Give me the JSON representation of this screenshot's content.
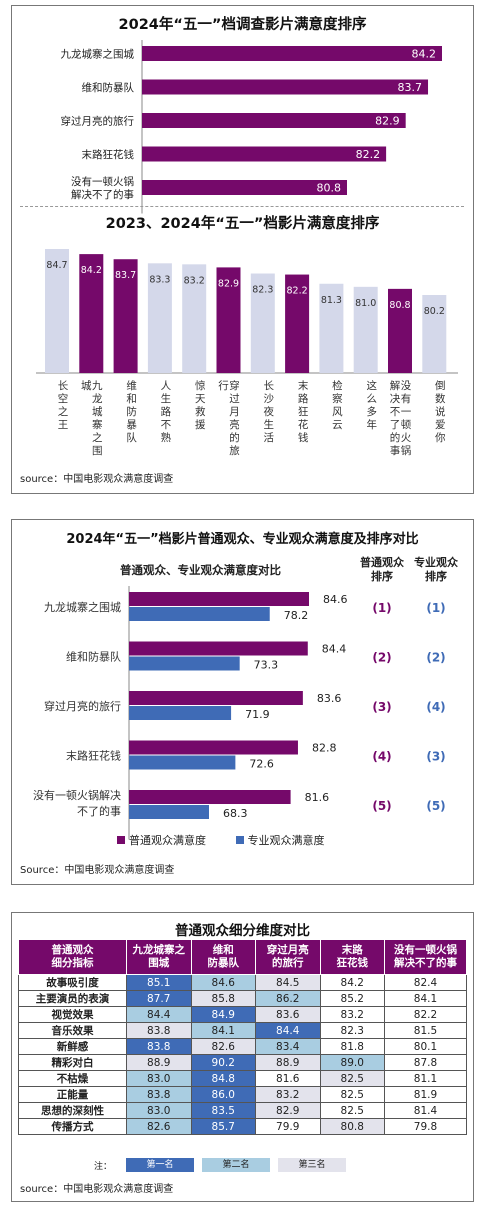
{
  "panel1": {
    "title": "2024年“五一”档调查影片满意度排序",
    "bar_color": "#75096a",
    "chart_data": {
      "type": "bar",
      "orientation": "horizontal",
      "categories": [
        "九龙城寨之围城",
        "维和防暴队",
        "穿过月亮的旅行",
        "末路狂花钱",
        "没有一顿火锅\n解决不了的事"
      ],
      "values": [
        84.2,
        83.7,
        82.9,
        82.2,
        80.8
      ],
      "value_labels": [
        "84.2",
        "83.7",
        "82.9",
        "82.2",
        "80.8"
      ]
    }
  },
  "panel2": {
    "title": "2023、2024年“五一”档影片满意度排序",
    "colors": {
      "y2024": "#75096a",
      "y2023": "#d4d8ea"
    },
    "chart_data": {
      "type": "bar",
      "categories": [
        "长空之王",
        "九龙城寨之围城",
        "维和防暴队",
        "人生路不熟",
        "惊天救援",
        "穿过月亮的旅行",
        "长沙夜生活",
        "末路狂花钱",
        "检察风云",
        "这么多年",
        "没有一顿火锅解决不了的事",
        "倒数说爱你"
      ],
      "values": [
        84.7,
        84.2,
        83.7,
        83.3,
        83.2,
        82.9,
        82.3,
        82.2,
        81.3,
        81.0,
        80.8,
        80.2
      ],
      "value_labels": [
        "84.7",
        "84.2",
        "83.7",
        "83.3",
        "83.2",
        "82.9",
        "82.3",
        "82.2",
        "81.3",
        "81.0",
        "80.8",
        "80.2"
      ],
      "is_2024": [
        false,
        true,
        true,
        false,
        false,
        true,
        false,
        true,
        false,
        false,
        true,
        false
      ]
    },
    "source": "source：中国电影观众满意度调查"
  },
  "panel3": {
    "title": "2024年“五一”档影片普通观众、专业观众满意度及排序对比",
    "subtitle": "普通观众、专业观众满意度对比",
    "rank_header_general": "普通观众\n排序",
    "rank_header_pro": "专业观众\n排序",
    "colors": {
      "general": "#75096a",
      "pro": "#3f6bb6"
    },
    "chart_data": {
      "type": "bar",
      "orientation": "horizontal",
      "categories": [
        "九龙城寨之围城",
        "维和防暴队",
        "穿过月亮的旅行",
        "末路狂花钱",
        "没有一顿火锅解决\n不了的事"
      ],
      "series": [
        {
          "name": "普通观众满意度",
          "values": [
            84.6,
            84.4,
            83.6,
            82.8,
            81.6
          ],
          "labels": [
            "84.6",
            "84.4",
            "83.6",
            "82.8",
            "81.6"
          ]
        },
        {
          "name": "专业观众满意度",
          "values": [
            78.2,
            73.3,
            71.9,
            72.6,
            68.3
          ],
          "labels": [
            "78.2",
            "73.3",
            "71.9",
            "72.6",
            "68.3"
          ]
        }
      ]
    },
    "ranks_general": [
      "(1)",
      "(2)",
      "(3)",
      "(4)",
      "(5)"
    ],
    "ranks_pro": [
      "(1)",
      "(2)",
      "(4)",
      "(3)",
      "(5)"
    ],
    "legend_general": "普通观众满意度",
    "legend_pro": "专业观众满意度",
    "source": "Source：中国电影观众满意度调查"
  },
  "panel4": {
    "title": "普通观众细分维度对比",
    "chart_data": {
      "type": "table",
      "headers": [
        "普通观众\n细分指标",
        "九龙城寨之\n围城",
        "维和\n防暴队",
        "穿过月亮\n的旅行",
        "末路\n狂花钱",
        "没有一顿火锅\n解决不了的事"
      ],
      "rows": [
        {
          "label": "故事吸引度",
          "values": [
            "85.1",
            "84.6",
            "84.5",
            "84.2",
            "82.4"
          ],
          "rank": [
            1,
            2,
            3,
            0,
            0
          ]
        },
        {
          "label": "主要演员的表演",
          "values": [
            "87.7",
            "85.8",
            "86.2",
            "85.2",
            "84.1"
          ],
          "rank": [
            1,
            3,
            2,
            0,
            0
          ]
        },
        {
          "label": "视觉效果",
          "values": [
            "84.4",
            "84.9",
            "83.6",
            "83.2",
            "82.2"
          ],
          "rank": [
            2,
            1,
            3,
            0,
            0
          ]
        },
        {
          "label": "音乐效果",
          "values": [
            "83.8",
            "84.1",
            "84.4",
            "82.3",
            "81.5"
          ],
          "rank": [
            3,
            2,
            1,
            0,
            0
          ]
        },
        {
          "label": "新鲜感",
          "values": [
            "83.8",
            "82.6",
            "83.4",
            "81.8",
            "80.1"
          ],
          "rank": [
            1,
            3,
            2,
            0,
            0
          ]
        },
        {
          "label": "精彩对白",
          "values": [
            "88.9",
            "90.2",
            "88.9",
            "89.0",
            "87.8"
          ],
          "rank": [
            3,
            1,
            3,
            2,
            0
          ]
        },
        {
          "label": "不枯燥",
          "values": [
            "83.0",
            "84.8",
            "81.6",
            "82.5",
            "81.1"
          ],
          "rank": [
            2,
            1,
            0,
            3,
            0
          ]
        },
        {
          "label": "正能量",
          "values": [
            "83.8",
            "86.0",
            "83.2",
            "82.5",
            "81.9"
          ],
          "rank": [
            2,
            1,
            3,
            0,
            0
          ]
        },
        {
          "label": "思想的深刻性",
          "values": [
            "83.0",
            "83.5",
            "82.9",
            "82.5",
            "81.4"
          ],
          "rank": [
            2,
            1,
            3,
            0,
            0
          ]
        },
        {
          "label": "传播方式",
          "values": [
            "82.6",
            "85.7",
            "79.9",
            "80.8",
            "79.8"
          ],
          "rank": [
            2,
            1,
            0,
            3,
            0
          ]
        }
      ]
    },
    "note_label": "注：",
    "legend": [
      "第一名",
      "第二名",
      "第三名"
    ],
    "source": "source：中国电影观众满意度调查"
  }
}
